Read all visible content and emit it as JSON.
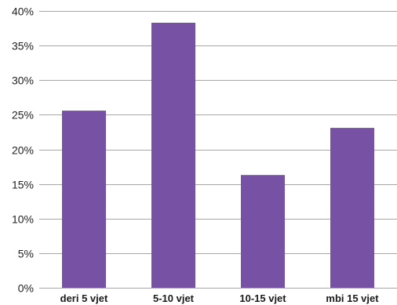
{
  "chart_data": {
    "type": "bar",
    "categories": [
      "deri 5 vjet",
      "5-10 vjet",
      "10-15 vjet",
      "mbi 15 vjet"
    ],
    "series": [
      {
        "values": [
          25.6,
          38.3,
          16.3,
          23.1
        ]
      }
    ],
    "y_ticks": [
      "0%",
      "5%",
      "10%",
      "15%",
      "20%",
      "25%",
      "30%",
      "35%",
      "40%"
    ],
    "ylim": [
      0,
      40
    ],
    "y_step": 5,
    "grid": true,
    "legend": "none",
    "colors": {
      "bar": "#7751a3",
      "grid": "#a6a6a6",
      "text": "#222222"
    }
  }
}
